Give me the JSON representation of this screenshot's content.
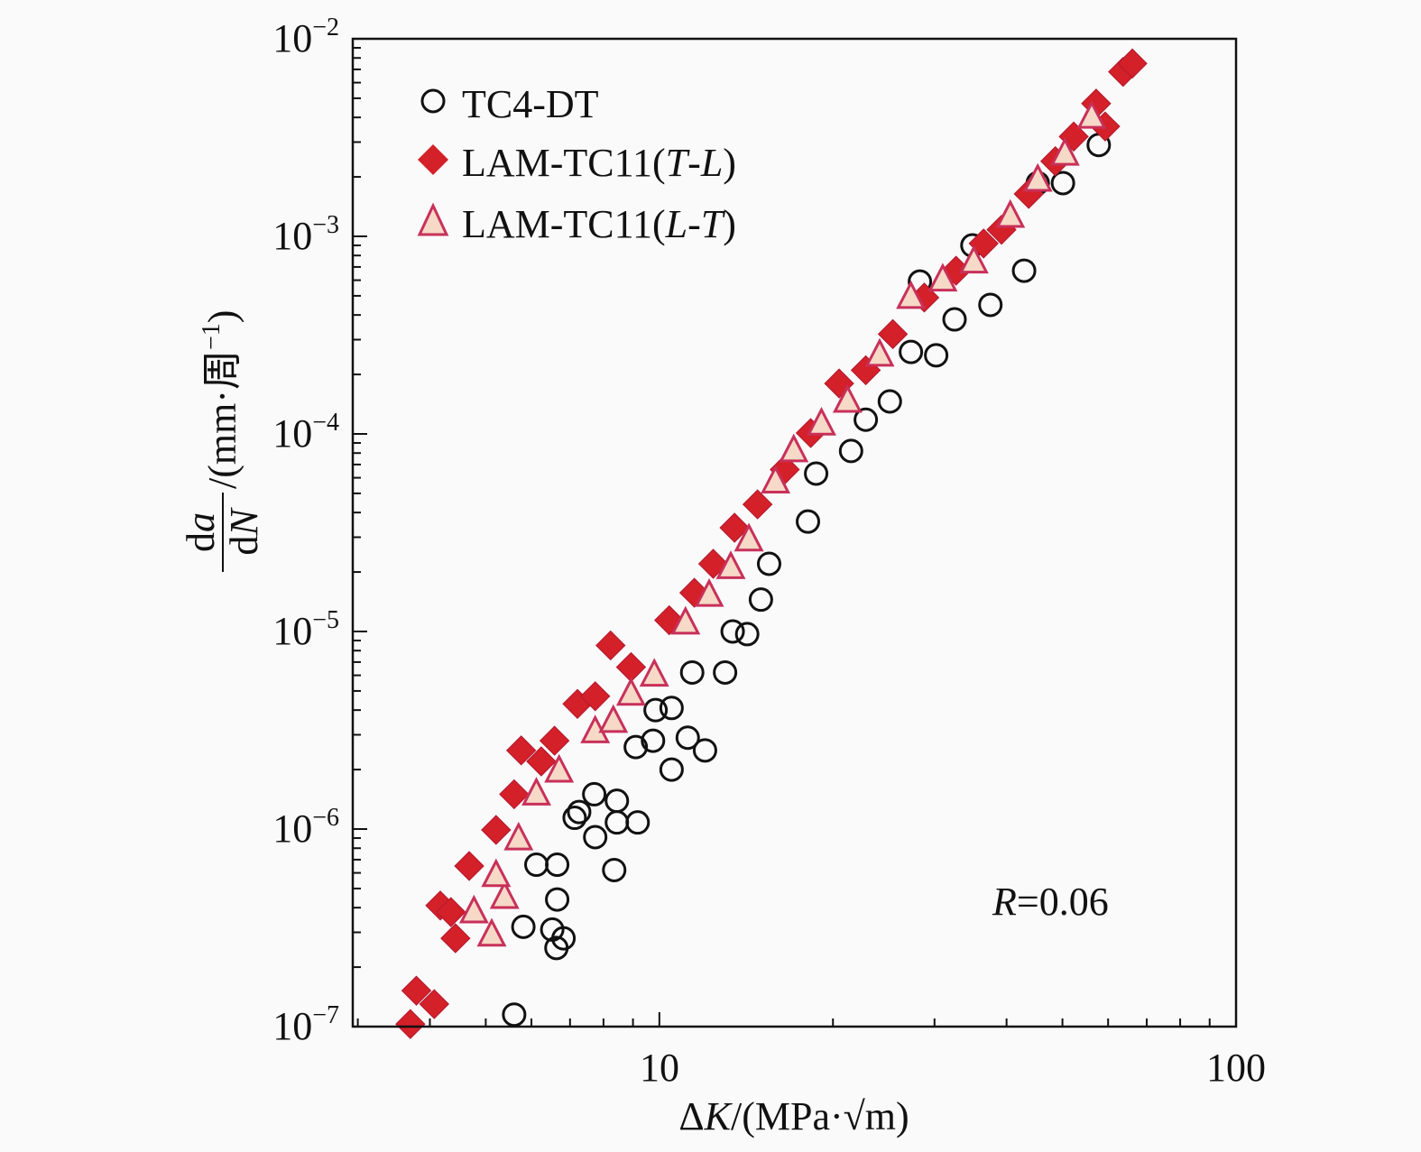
{
  "chart_data": {
    "type": "scatter",
    "x_scale": "log",
    "y_scale": "log",
    "xlim": [
      2.94,
      100
    ],
    "ylim": [
      1e-07,
      0.01
    ],
    "grid": false,
    "legend_position": "top-left",
    "xlabel": {
      "delta": "Δ",
      "var": "K",
      "unit": "/(MPa·√m)"
    },
    "ylabel": {
      "num_d": "d",
      "num_var": "a",
      "den_d": "d",
      "den_var": "N",
      "unit": "/(mm·周",
      "unit_sup": "−1",
      "unit_close": ")"
    },
    "x_ticks": [
      {
        "value": 10,
        "label": "10"
      },
      {
        "value": 100,
        "label": "100"
      }
    ],
    "y_ticks": [
      {
        "value": 0.01,
        "base": "10",
        "exp": "−2"
      },
      {
        "value": 0.001,
        "base": "10",
        "exp": "−3"
      },
      {
        "value": 0.0001,
        "base": "10",
        "exp": "−4"
      },
      {
        "value": 1e-05,
        "base": "10",
        "exp": "−5"
      },
      {
        "value": 1e-06,
        "base": "10",
        "exp": "−6"
      },
      {
        "value": 1e-07,
        "base": "10",
        "exp": "−7"
      }
    ],
    "annotation": {
      "var": "R",
      "text": "=0.06"
    },
    "series": [
      {
        "name": "TC4-DT",
        "legend": {
          "main": "TC4-DT"
        },
        "marker": "circle",
        "color": "#111111",
        "fill": "none",
        "points": [
          [
            5.6,
            1.15e-07
          ],
          [
            5.81,
            3.2e-07
          ],
          [
            6.12,
            6.6e-07
          ],
          [
            6.65,
            6.6e-07
          ],
          [
            6.65,
            4.4e-07
          ],
          [
            6.52,
            3.1e-07
          ],
          [
            6.63,
            2.5e-07
          ],
          [
            6.82,
            2.8e-07
          ],
          [
            7.13,
            1.14e-06
          ],
          [
            7.26,
            1.22e-06
          ],
          [
            7.71,
            1.5e-06
          ],
          [
            8.44,
            1.39e-06
          ],
          [
            7.74,
            9.1e-07
          ],
          [
            8.44,
            1.08e-06
          ],
          [
            9.17,
            1.08e-06
          ],
          [
            8.35,
            6.2e-07
          ],
          [
            9.1,
            2.6e-06
          ],
          [
            9.75,
            2.8e-06
          ],
          [
            10.5,
            2e-06
          ],
          [
            10.5,
            4.1e-06
          ],
          [
            9.85,
            4e-06
          ],
          [
            11.2,
            2.9e-06
          ],
          [
            12.0,
            2.5e-06
          ],
          [
            11.4,
            6.2e-06
          ],
          [
            13.0,
            6.2e-06
          ],
          [
            13.4,
            1e-05
          ],
          [
            14.2,
            9.7e-06
          ],
          [
            15.0,
            1.45e-05
          ],
          [
            15.5,
            2.2e-05
          ],
          [
            18.1,
            3.6e-05
          ],
          [
            18.7,
            6.3e-05
          ],
          [
            21.5,
            8.2e-05
          ],
          [
            22.8,
            0.000118
          ],
          [
            25.1,
            0.000146
          ],
          [
            27.3,
            0.00026
          ],
          [
            30.2,
            0.00025
          ],
          [
            28.3,
            0.00059
          ],
          [
            32.5,
            0.00038
          ],
          [
            37.5,
            0.00045
          ],
          [
            34.9,
            0.0009
          ],
          [
            42.9,
            0.00067
          ],
          [
            45.3,
            0.00186
          ],
          [
            50.1,
            0.00186
          ],
          [
            57.8,
            0.0029
          ]
        ]
      },
      {
        "name": "LAM-TC11(T-L)",
        "legend": {
          "main": "LAM-TC11(",
          "a": "T",
          "dash": "-",
          "b": "L",
          "close": ")"
        },
        "marker": "diamond",
        "color": "#d42028",
        "fill": "#d42028",
        "points": [
          [
            3.79,
            1.52e-07
          ],
          [
            4.07,
            1.3e-07
          ],
          [
            3.7,
            1.03e-07
          ],
          [
            4.17,
            4.1e-07
          ],
          [
            4.43,
            2.8e-07
          ],
          [
            4.35,
            3.8e-07
          ],
          [
            4.68,
            6.5e-07
          ],
          [
            5.21,
            9.9e-07
          ],
          [
            5.6,
            1.5e-06
          ],
          [
            5.76,
            2.5e-06
          ],
          [
            6.24,
            2.2e-06
          ],
          [
            6.58,
            2.8e-06
          ],
          [
            7.21,
            4.3e-06
          ],
          [
            7.74,
            4.7e-06
          ],
          [
            8.23,
            8.5e-06
          ],
          [
            8.93,
            6.6e-06
          ],
          [
            10.4,
            1.14e-05
          ],
          [
            11.5,
            1.57e-05
          ],
          [
            12.4,
            2.2e-05
          ],
          [
            13.5,
            3.35e-05
          ],
          [
            14.8,
            4.4e-05
          ],
          [
            16.5,
            6.6e-05
          ],
          [
            18.3,
            0.000101
          ],
          [
            20.5,
            0.00018
          ],
          [
            22.8,
            0.00021
          ],
          [
            25.4,
            0.00032
          ],
          [
            28.8,
            0.00049
          ],
          [
            32.7,
            0.00067
          ],
          [
            36.5,
            0.00092
          ],
          [
            39.2,
            0.00108
          ],
          [
            43.7,
            0.00164
          ],
          [
            48.6,
            0.0024
          ],
          [
            52.3,
            0.0032
          ],
          [
            57.2,
            0.0047
          ],
          [
            59.3,
            0.0036
          ],
          [
            63.7,
            0.0068
          ],
          [
            66.1,
            0.0075
          ]
        ]
      },
      {
        "name": "LAM-TC11(L-T)",
        "legend": {
          "main": "LAM-TC11(",
          "a": "L",
          "dash": "-",
          "b": "T",
          "close": ")"
        },
        "marker": "triangle",
        "color": "#c8305a",
        "fill": "#f6d9c6",
        "points": [
          [
            5.12,
            2.9e-07
          ],
          [
            4.77,
            3.8e-07
          ],
          [
            5.39,
            4.5e-07
          ],
          [
            5.21,
            5.8e-07
          ],
          [
            5.7,
            8.9e-07
          ],
          [
            6.12,
            1.5e-06
          ],
          [
            6.7,
            1.96e-06
          ],
          [
            7.74,
            3.1e-06
          ],
          [
            8.32,
            3.5e-06
          ],
          [
            8.93,
            4.8e-06
          ],
          [
            9.8,
            6e-06
          ],
          [
            11.1,
            1.1e-05
          ],
          [
            12.2,
            1.52e-05
          ],
          [
            13.3,
            2.1e-05
          ],
          [
            14.3,
            2.9e-05
          ],
          [
            15.9,
            5.7e-05
          ],
          [
            17.1,
            8.2e-05
          ],
          [
            19.1,
            0.000112
          ],
          [
            21.2,
            0.000146
          ],
          [
            24.1,
            0.00025
          ],
          [
            27.3,
            0.00049
          ],
          [
            31.0,
            0.0006
          ],
          [
            35.1,
            0.00074
          ],
          [
            40.6,
            0.00126
          ],
          [
            45.3,
            0.00192
          ],
          [
            50.5,
            0.0026
          ],
          [
            56.2,
            0.004
          ]
        ]
      }
    ]
  }
}
